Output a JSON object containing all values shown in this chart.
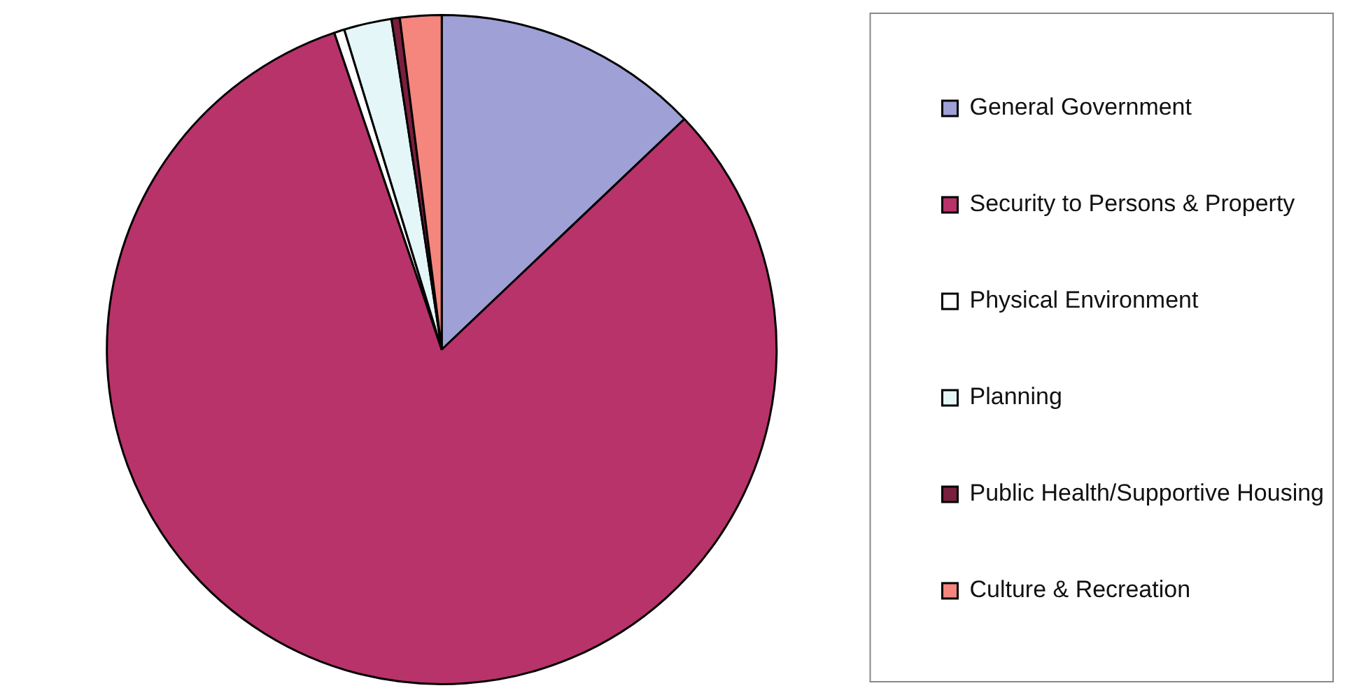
{
  "chart_data": {
    "type": "pie",
    "categories": [
      "General Government",
      "Security to Persons & Property",
      "Physical Environment",
      "Planning",
      "Public Health/Supportive Housing",
      "Culture & Recreation"
    ],
    "values": [
      12.9,
      81.9,
      0.5,
      2.3,
      0.4,
      2.0
    ],
    "colors": [
      "#9fa0d6",
      "#b8336a",
      "#ffffff",
      "#e4f6f8",
      "#7a1f3d",
      "#f4867e"
    ],
    "legend": "right"
  }
}
